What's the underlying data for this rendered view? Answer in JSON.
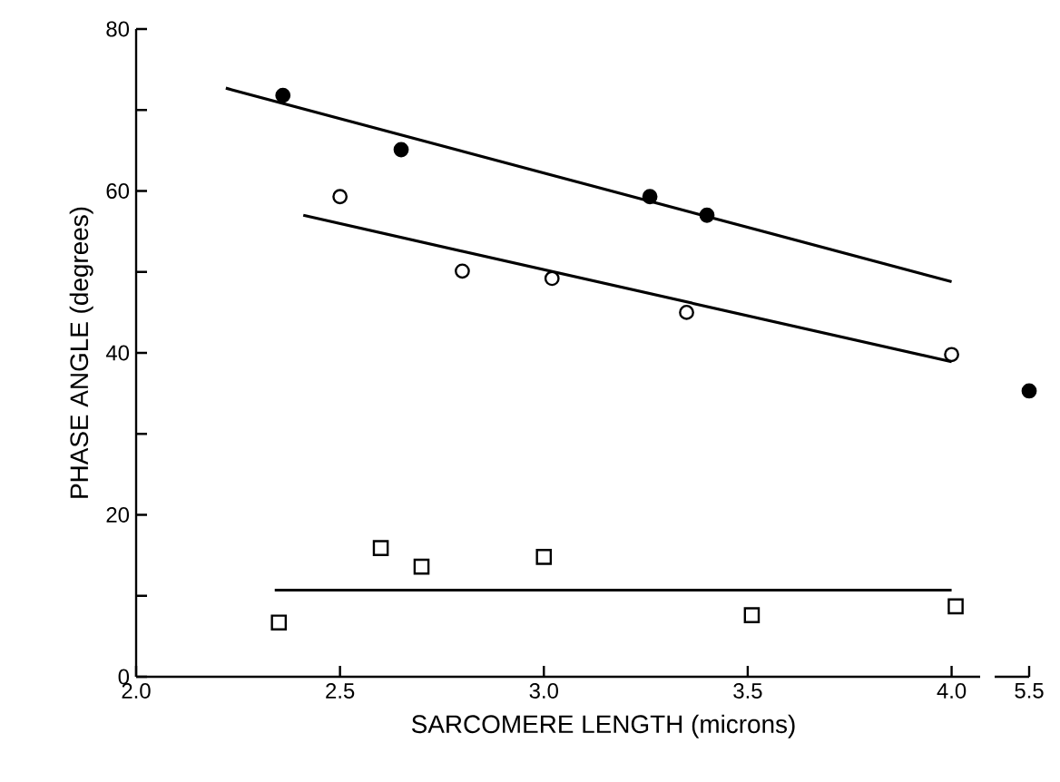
{
  "chart_data": [
    {
      "type": "scatter",
      "xlabel": "SARCOMERE LENGTH (microns)",
      "ylabel": "PHASE ANGLE (degrees)",
      "xlim": [
        2.0,
        4.07
      ],
      "ylim": [
        0,
        80
      ],
      "xticks": [
        {
          "value": 2.0,
          "label": "2.0"
        },
        {
          "value": 2.5,
          "label": "2.5"
        },
        {
          "value": 3.0,
          "label": "3.0"
        },
        {
          "value": 3.5,
          "label": "3.5"
        },
        {
          "value": 4.0,
          "label": "4.0"
        }
      ],
      "yticks": [
        0,
        {
          "value": 10,
          "label": null
        },
        20,
        {
          "value": 30,
          "label": null
        },
        40,
        {
          "value": 50,
          "label": null
        },
        60,
        {
          "value": 70,
          "label": null
        },
        80
      ],
      "series": [
        {
          "marker": "circle",
          "color": "#000000",
          "x": [
            2.36,
            2.65,
            3.26,
            3.4
          ],
          "values": [
            71.8,
            65.1,
            59.3,
            57.0
          ]
        },
        {
          "marker": "circle",
          "color": "#ffffff",
          "x": [
            2.5,
            2.8,
            3.02,
            3.35,
            4.0
          ],
          "values": [
            59.3,
            50.1,
            49.2,
            45.0,
            39.8
          ]
        },
        {
          "marker": "square",
          "color": "#ffffff",
          "x": [
            2.35,
            2.6,
            2.7,
            3.0,
            3.51,
            4.01
          ],
          "values": [
            6.7,
            15.9,
            13.6,
            14.8,
            7.6,
            8.7
          ]
        },
        {
          "type": "line",
          "line_style": "solid",
          "color": "#000000",
          "x": [
            2.22,
            4.0
          ],
          "values": [
            72.7,
            48.8
          ]
        },
        {
          "type": "line",
          "line_style": "solid",
          "color": "#000000",
          "x": [
            2.41,
            4.0
          ],
          "values": [
            57.0,
            38.9
          ]
        },
        {
          "type": "line",
          "line_style": "solid",
          "color": "#000000",
          "x": [
            2.34,
            4.0
          ],
          "values": [
            10.7,
            10.7
          ]
        }
      ]
    },
    {
      "type": "scatter",
      "categories": [
        "5.5"
      ],
      "ylim": [
        0,
        80
      ],
      "tick_labels": "x",
      "series": [
        {
          "marker": "circle",
          "color": "#000000",
          "values": [
            35.3
          ]
        }
      ]
    }
  ]
}
